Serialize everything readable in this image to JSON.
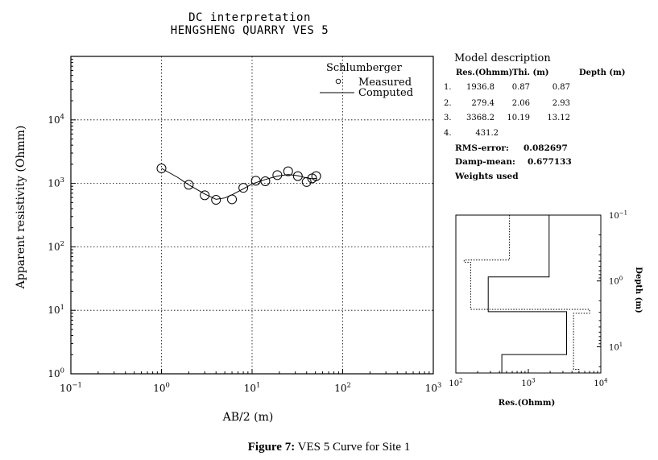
{
  "chart_data": [
    {
      "type": "scatter",
      "title": "DC interpretation",
      "subtitle": "HENGSHENG QUARRY VES 5",
      "xlabel": "AB/2 (m)",
      "ylabel": "Apparent resistivity (Ohmm)",
      "xscale": "log",
      "yscale": "log",
      "xlim": [
        0.1,
        1000
      ],
      "ylim": [
        1,
        100000
      ],
      "x_ticks": [
        {
          "v": 0.1,
          "base": "10",
          "exp": "−1"
        },
        {
          "v": 1,
          "base": "10",
          "exp": "0"
        },
        {
          "v": 10,
          "base": "10",
          "exp": "1"
        },
        {
          "v": 100,
          "base": "10",
          "exp": "2"
        },
        {
          "v": 1000,
          "base": "10",
          "exp": "3"
        }
      ],
      "y_ticks": [
        {
          "v": 1,
          "base": "10",
          "exp": "0"
        },
        {
          "v": 10,
          "base": "10",
          "exp": "1"
        },
        {
          "v": 100,
          "base": "10",
          "exp": "2"
        },
        {
          "v": 1000,
          "base": "10",
          "exp": "3"
        },
        {
          "v": 10000,
          "base": "10",
          "exp": "4"
        }
      ],
      "grid": true,
      "legend_title": "Schlumberger",
      "legend_position": "top-right",
      "series": [
        {
          "name": "Measured",
          "marker": "circle",
          "x": [
            1,
            2,
            3,
            4,
            6,
            8,
            11,
            14,
            19,
            25,
            32,
            40,
            46,
            51
          ],
          "y": [
            1720,
            950,
            650,
            550,
            560,
            850,
            1100,
            1080,
            1350,
            1550,
            1300,
            1050,
            1200,
            1300
          ]
        },
        {
          "name": "Computed",
          "marker": "line",
          "x": [
            1,
            1.5,
            2,
            3,
            4,
            5,
            6,
            8,
            10,
            14,
            19,
            25,
            32,
            40,
            46,
            51
          ],
          "y": [
            1720,
            1250,
            950,
            680,
            560,
            590,
            660,
            820,
            980,
            1150,
            1300,
            1380,
            1320,
            1220,
            1180,
            1200
          ]
        }
      ]
    },
    {
      "type": "line",
      "xlabel": "Res.(Ohmm)",
      "ylabel": "Depth (m)",
      "xscale": "log",
      "yscale": "log",
      "xlim": [
        100,
        10000
      ],
      "ylim": [
        0.1,
        25
      ],
      "x_ticks": [
        {
          "v": 100,
          "base": "10",
          "exp": "2"
        },
        {
          "v": 1000,
          "base": "10",
          "exp": "3"
        },
        {
          "v": 10000,
          "base": "10",
          "exp": "4"
        }
      ],
      "y_ticks": [
        {
          "v": 0.1,
          "base": "10",
          "exp": "−1"
        },
        {
          "v": 1,
          "base": "10",
          "exp": "0"
        },
        {
          "v": 10,
          "base": "10",
          "exp": "1"
        }
      ],
      "series": [
        {
          "style": "solid",
          "resistivity": [
            1936.8,
            279.4,
            3368.2,
            431.2
          ],
          "depth_tops": [
            0.1,
            0.87,
            2.93,
            13.12
          ],
          "depth_bottom": 25
        },
        {
          "style": "dotted",
          "resistivity": [
            550,
            130,
            160,
            7000,
            4200,
            5000
          ],
          "depth_tops": [
            0.1,
            0.48,
            0.52,
            2.7,
            3.1,
            22
          ],
          "depth_bottom": 25
        }
      ]
    }
  ],
  "model": {
    "title": "Model description",
    "headers": [
      "Res.(Ohmm)",
      "Thi. (m)",
      "Depth (m)"
    ],
    "layers": [
      {
        "n": "1.",
        "res": "1936.8",
        "thi": "0.87",
        "depth": "0.87"
      },
      {
        "n": "2.",
        "res": "279.4",
        "thi": "2.06",
        "depth": "2.93"
      },
      {
        "n": "3.",
        "res": "3368.2",
        "thi": "10.19",
        "depth": "13.12"
      },
      {
        "n": "4.",
        "res": "431.2",
        "thi": "",
        "depth": ""
      }
    ],
    "rms_label": "RMS-error:",
    "rms_value": "0.082697",
    "damp_label": "Damp-mean:",
    "damp_value": "0.677133",
    "weights": "Weights used"
  },
  "caption": {
    "bold": "Figure 7:",
    "text": " VES 5 Curve for Site 1"
  }
}
